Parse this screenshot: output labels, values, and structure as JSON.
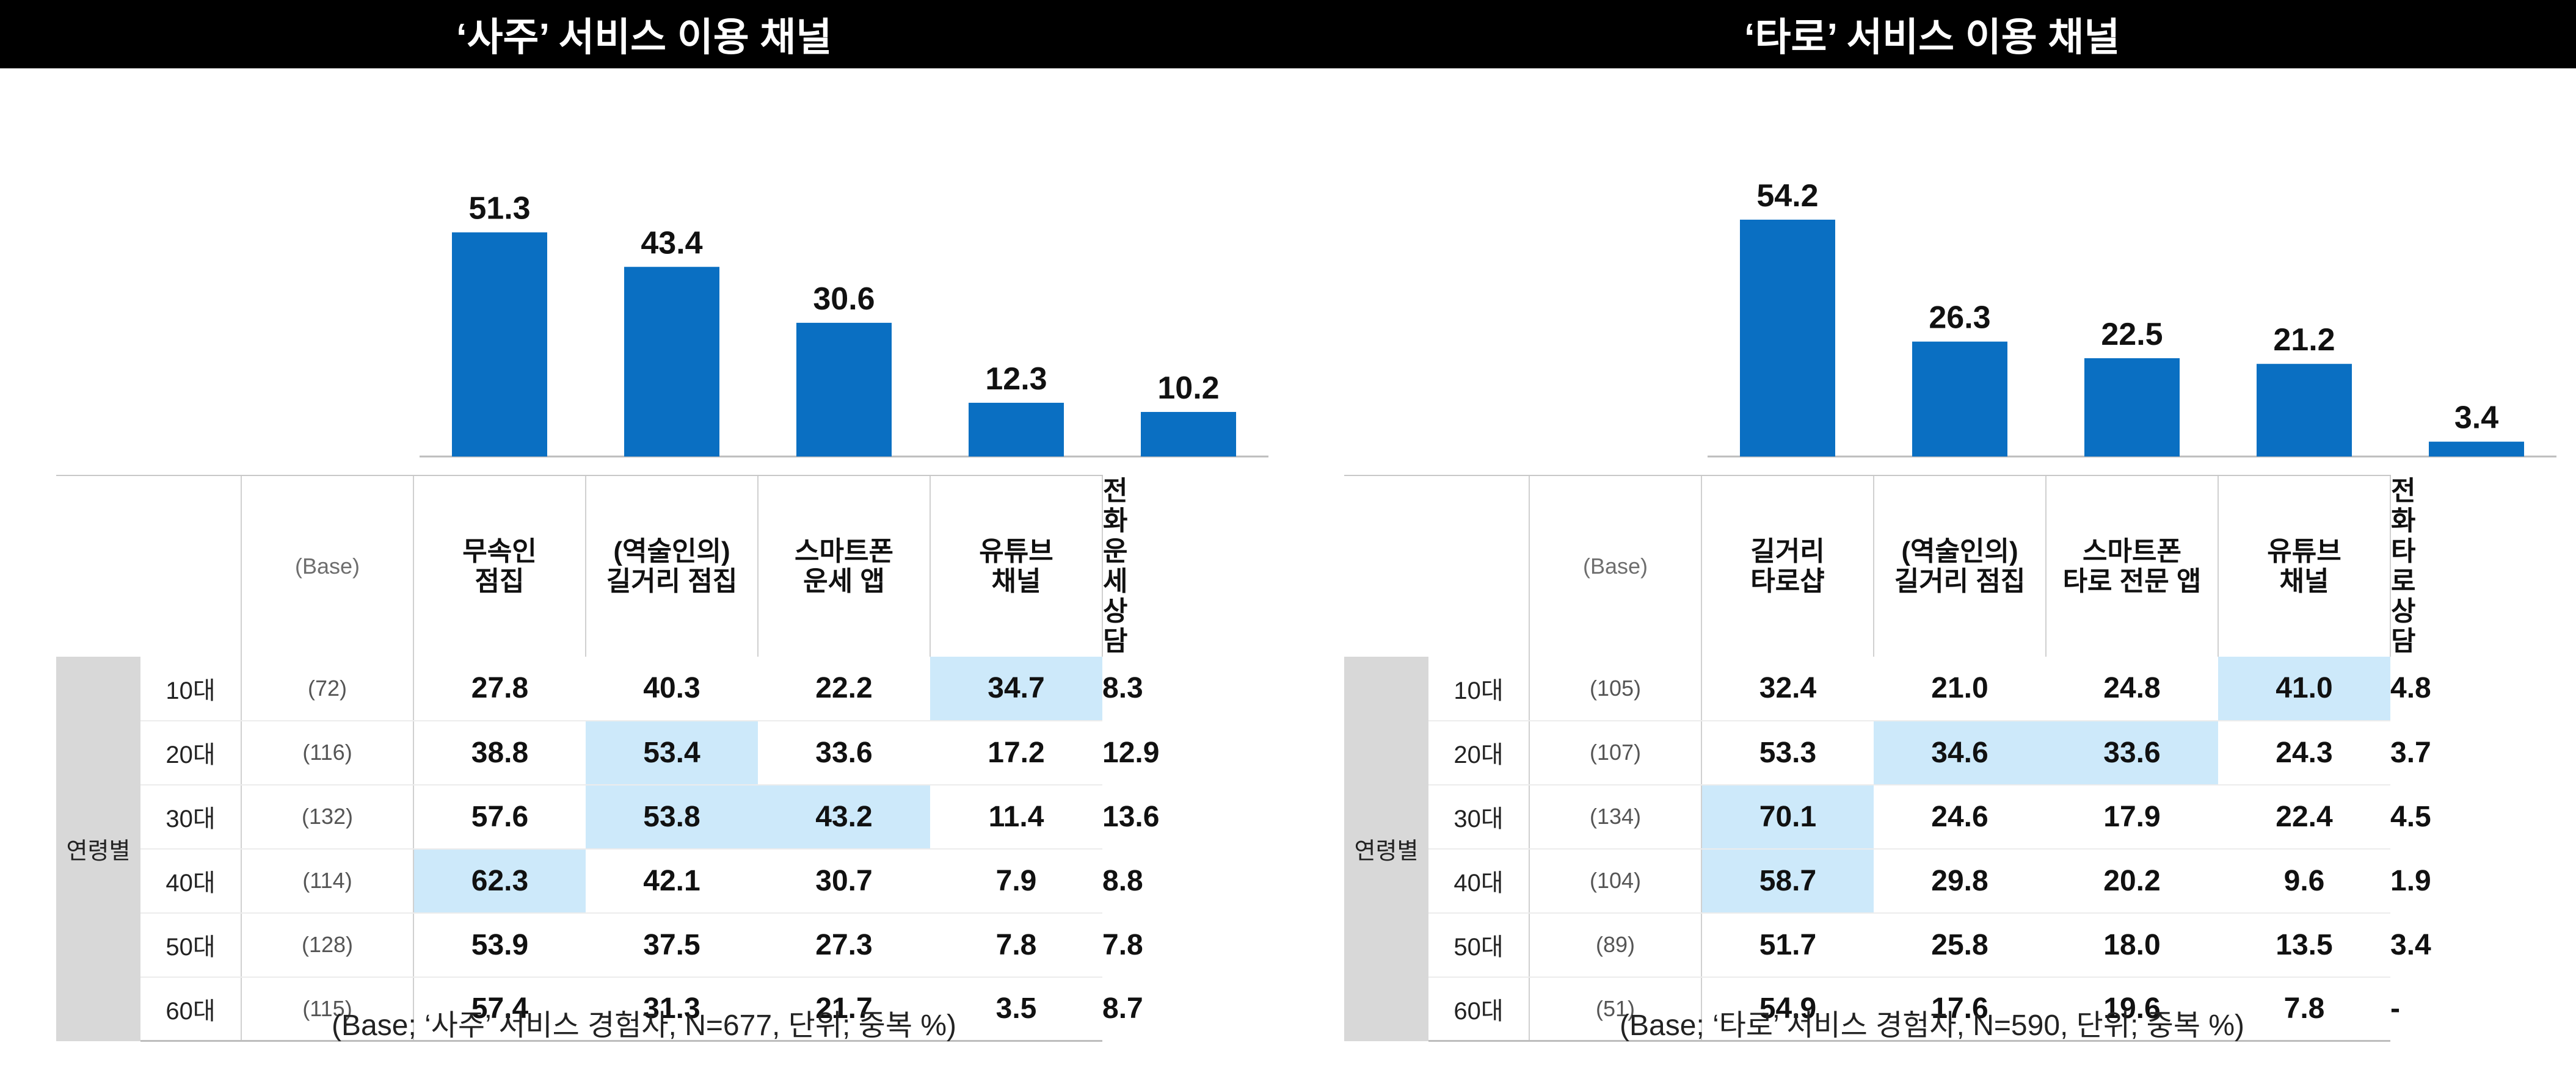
{
  "colors": {
    "bar": "#0a6fc2",
    "highlight": "#cde9fa",
    "title_bg": "#000000",
    "group_bg": "#d8d8d8"
  },
  "panels": [
    {
      "title": "‘사주’ 서비스 이용 채널",
      "base_label": "(Base)",
      "group_label": "연령별",
      "columns": [
        [
          "무속인",
          "점집"
        ],
        [
          "(역술인의)",
          "길거리 점집"
        ],
        [
          "스마트폰",
          "운세 앱"
        ],
        [
          "유튜브",
          "채널"
        ],
        [
          "전화운세",
          "상담"
        ]
      ],
      "rows": [
        {
          "age": "10대",
          "base": "(72)",
          "values": [
            "27.8",
            "40.3",
            "22.2",
            "34.7",
            "8.3"
          ],
          "highlight": [
            false,
            false,
            false,
            true,
            false
          ]
        },
        {
          "age": "20대",
          "base": "(116)",
          "values": [
            "38.8",
            "53.4",
            "33.6",
            "17.2",
            "12.9"
          ],
          "highlight": [
            false,
            true,
            false,
            false,
            false
          ]
        },
        {
          "age": "30대",
          "base": "(132)",
          "values": [
            "57.6",
            "53.8",
            "43.2",
            "11.4",
            "13.6"
          ],
          "highlight": [
            false,
            true,
            true,
            false,
            false
          ]
        },
        {
          "age": "40대",
          "base": "(114)",
          "values": [
            "62.3",
            "42.1",
            "30.7",
            "7.9",
            "8.8"
          ],
          "highlight": [
            true,
            false,
            false,
            false,
            false
          ]
        },
        {
          "age": "50대",
          "base": "(128)",
          "values": [
            "53.9",
            "37.5",
            "27.3",
            "7.8",
            "7.8"
          ],
          "highlight": [
            false,
            false,
            false,
            false,
            false
          ]
        },
        {
          "age": "60대",
          "base": "(115)",
          "values": [
            "57.4",
            "31.3",
            "21.7",
            "3.5",
            "8.7"
          ],
          "highlight": [
            false,
            false,
            false,
            false,
            false
          ]
        }
      ],
      "footnote": "(Base; ‘사주’ 서비스 경험자, N=677,  단위; 중복 %)"
    },
    {
      "title": "‘타로’ 서비스 이용 채널",
      "base_label": "(Base)",
      "group_label": "연령별",
      "columns": [
        [
          "길거리",
          "타로샵"
        ],
        [
          "(역술인의)",
          "길거리 점집"
        ],
        [
          "스마트폰",
          "타로 전문 앱"
        ],
        [
          "유튜브",
          "채널"
        ],
        [
          "전화타로",
          "상담"
        ]
      ],
      "rows": [
        {
          "age": "10대",
          "base": "(105)",
          "values": [
            "32.4",
            "21.0",
            "24.8",
            "41.0",
            "4.8"
          ],
          "highlight": [
            false,
            false,
            false,
            true,
            false
          ]
        },
        {
          "age": "20대",
          "base": "(107)",
          "values": [
            "53.3",
            "34.6",
            "33.6",
            "24.3",
            "3.7"
          ],
          "highlight": [
            false,
            true,
            true,
            false,
            false
          ]
        },
        {
          "age": "30대",
          "base": "(134)",
          "values": [
            "70.1",
            "24.6",
            "17.9",
            "22.4",
            "4.5"
          ],
          "highlight": [
            true,
            false,
            false,
            false,
            false
          ]
        },
        {
          "age": "40대",
          "base": "(104)",
          "values": [
            "58.7",
            "29.8",
            "20.2",
            "9.6",
            "1.9"
          ],
          "highlight": [
            true,
            false,
            false,
            false,
            false
          ]
        },
        {
          "age": "50대",
          "base": "(89)",
          "values": [
            "51.7",
            "25.8",
            "18.0",
            "13.5",
            "3.4"
          ],
          "highlight": [
            false,
            false,
            false,
            false,
            false
          ]
        },
        {
          "age": "60대",
          "base": "(51)",
          "values": [
            "54.9",
            "17.6",
            "19.6",
            "7.8",
            "-"
          ],
          "highlight": [
            false,
            false,
            false,
            false,
            false
          ]
        }
      ],
      "footnote": "(Base; ‘타로’ 서비스 경험자, N=590,  단위; 중복 %)"
    }
  ],
  "chart_data": [
    {
      "type": "bar",
      "title": "‘사주’ 서비스 이용 채널",
      "categories": [
        "무속인 점집",
        "(역술인의) 길거리 점집",
        "스마트폰 운세 앱",
        "유튜브 채널",
        "전화운세 상담"
      ],
      "values": [
        51.3,
        43.4,
        30.6,
        12.3,
        10.2
      ],
      "labels": [
        "51.3",
        "43.4",
        "30.6",
        "12.3",
        "10.2"
      ],
      "ylim": [
        0,
        60
      ],
      "grid": false
    },
    {
      "type": "bar",
      "title": "‘타로’ 서비스 이용 채널",
      "categories": [
        "길거리 타로샵",
        "(역술인의) 길거리 점집",
        "스마트폰 타로 전문 앱",
        "유튜브 채널",
        "전화타로 상담"
      ],
      "values": [
        54.2,
        26.3,
        22.5,
        21.2,
        3.4
      ],
      "labels": [
        "54.2",
        "26.3",
        "22.5",
        "21.2",
        "3.4"
      ],
      "ylim": [
        0,
        60
      ],
      "grid": false
    }
  ]
}
